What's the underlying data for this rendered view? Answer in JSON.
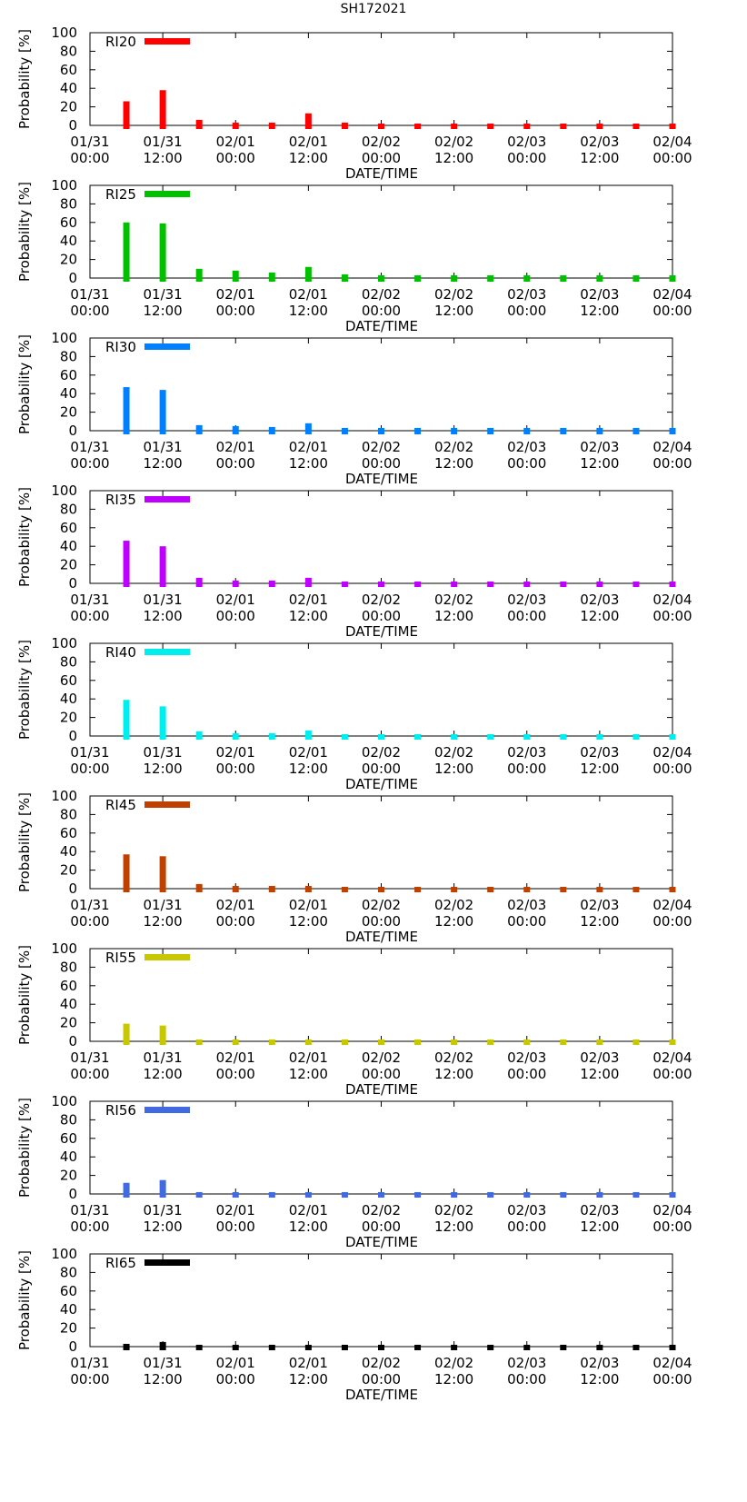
{
  "title": "SH172021",
  "chart_data": {
    "type": "bar",
    "title": "SH172021",
    "xlabel": "DATE/TIME",
    "ylabel": "Probability [%]",
    "ylim": [
      0,
      100
    ],
    "yticks": [
      "0",
      "20",
      "40",
      "60",
      "80",
      "100"
    ],
    "x_tick_labels": [
      [
        "01/31",
        "00:00"
      ],
      [
        "01/31",
        "12:00"
      ],
      [
        "02/01",
        "00:00"
      ],
      [
        "02/01",
        "12:00"
      ],
      [
        "02/02",
        "00:00"
      ],
      [
        "02/02",
        "12:00"
      ],
      [
        "02/03",
        "00:00"
      ],
      [
        "02/03",
        "12:00"
      ],
      [
        "02/04",
        "00:00"
      ]
    ],
    "x_hours": [
      6,
      12,
      18,
      24,
      30,
      36,
      42,
      48,
      54,
      60,
      66,
      72,
      78,
      84,
      90,
      96
    ],
    "x_range_hours": [
      0,
      96
    ],
    "panels": [
      {
        "name": "RI20",
        "color": "#ff0000",
        "values": [
          26,
          38,
          6,
          3,
          3,
          13,
          3,
          2,
          2,
          2,
          2,
          2,
          2,
          2,
          2,
          2
        ]
      },
      {
        "name": "RI25",
        "color": "#00c000",
        "values": [
          60,
          59,
          10,
          8,
          6,
          12,
          4,
          3,
          3,
          3,
          3,
          3,
          3,
          3,
          3,
          3
        ]
      },
      {
        "name": "RI30",
        "color": "#0080ff",
        "values": [
          47,
          44,
          6,
          5,
          4,
          8,
          3,
          3,
          3,
          3,
          3,
          3,
          3,
          3,
          3,
          3
        ]
      },
      {
        "name": "RI35",
        "color": "#c000ff",
        "values": [
          46,
          40,
          6,
          3,
          3,
          6,
          2,
          2,
          2,
          2,
          2,
          2,
          2,
          2,
          2,
          2
        ]
      },
      {
        "name": "RI40",
        "color": "#00eeee",
        "values": [
          39,
          32,
          5,
          3,
          3,
          6,
          2,
          2,
          2,
          2,
          2,
          2,
          2,
          2,
          2,
          2
        ]
      },
      {
        "name": "RI45",
        "color": "#c04000",
        "values": [
          37,
          35,
          5,
          3,
          3,
          3,
          2,
          2,
          2,
          2,
          2,
          2,
          2,
          2,
          2,
          2
        ]
      },
      {
        "name": "RI55",
        "color": "#c8c800",
        "values": [
          19,
          17,
          2,
          2,
          2,
          2,
          2,
          2,
          2,
          2,
          2,
          2,
          2,
          2,
          2,
          2
        ]
      },
      {
        "name": "RI56",
        "color": "#4169e1",
        "values": [
          12,
          15,
          2,
          2,
          2,
          2,
          2,
          2,
          2,
          2,
          2,
          2,
          2,
          2,
          2,
          2
        ]
      },
      {
        "name": "RI65",
        "color": "#000000",
        "values": [
          3,
          5,
          2,
          2,
          2,
          2,
          2,
          2,
          2,
          2,
          2,
          2,
          2,
          2,
          2,
          2
        ]
      }
    ]
  }
}
